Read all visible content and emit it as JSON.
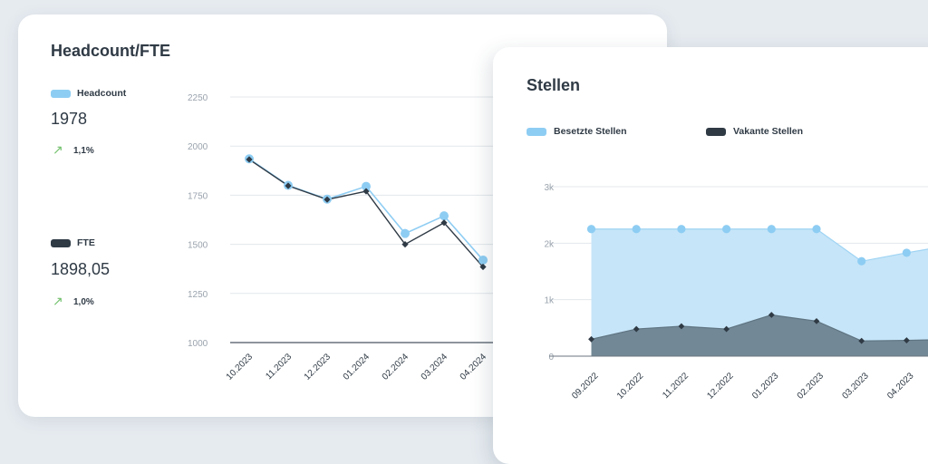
{
  "chart_data": [
    {
      "type": "line",
      "title": "Headcount/FTE",
      "categories": [
        "10.2023",
        "11.2023",
        "12.2023",
        "01.2024",
        "02.2024",
        "03.2024",
        "04.2024"
      ],
      "yticks": [
        "2250",
        "2000",
        "1750",
        "1500",
        "1250",
        "1000"
      ],
      "ylim": [
        1000,
        2250
      ],
      "series": [
        {
          "name": "Headcount",
          "color": "#8ecdf3",
          "kpi": "1978",
          "trend": "1,1%",
          "values": [
            1935,
            1800,
            1730,
            1795,
            1555,
            1645,
            1420
          ]
        },
        {
          "name": "FTE",
          "color": "#2f3a45",
          "kpi": "1898,05",
          "trend": "1,0%",
          "values": [
            1932,
            1798,
            1728,
            1770,
            1500,
            1610,
            1385
          ]
        }
      ]
    },
    {
      "type": "area",
      "title": "Stellen",
      "categories": [
        "09.2022",
        "10.2022",
        "11.2022",
        "12.2022",
        "01.2023",
        "02.2023",
        "03.2023",
        "04.2023"
      ],
      "yticks": [
        "3k",
        "2k",
        "1k",
        "0"
      ],
      "ylim": [
        0,
        3000
      ],
      "series": [
        {
          "name": "Besetzte Stellen",
          "color": "#8ecdf3",
          "values": [
            2250,
            2250,
            2250,
            2250,
            2250,
            2250,
            1680,
            1830
          ]
        },
        {
          "name": "Vakante Stellen",
          "color": "#2f3a45",
          "values": [
            300,
            480,
            530,
            480,
            730,
            620,
            270,
            280
          ]
        }
      ]
    }
  ],
  "trend_icon": "arrow-up-right-icon"
}
